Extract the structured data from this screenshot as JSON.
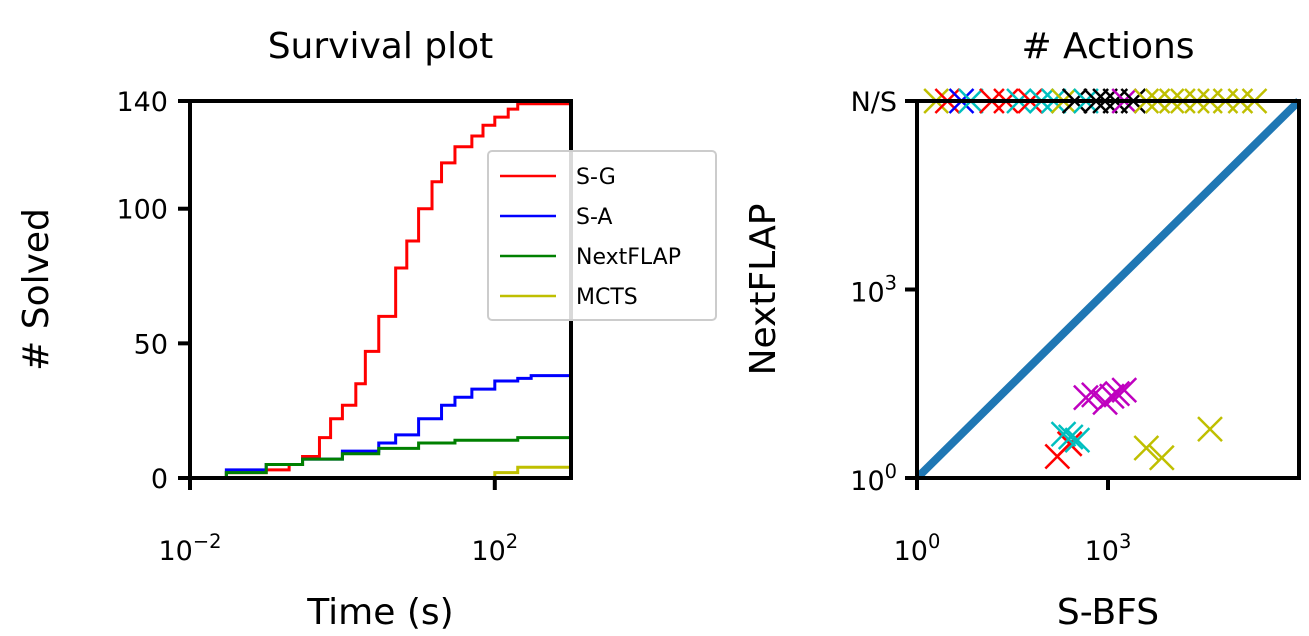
{
  "colors": {
    "S-G": "#ff0000",
    "S-A": "#0000ff",
    "NextFLAP": "#008000",
    "MCTS": "#bfbf00",
    "diagonal": "#1f77b4",
    "cyan": "#00bfbf",
    "magenta": "#bf00bf",
    "black": "#000000"
  },
  "chart_data": [
    {
      "type": "line",
      "title": "Survival plot",
      "xlabel": "Time (s)",
      "ylabel": "# Solved",
      "xscale": "log",
      "xlim": [
        0.01,
        1000
      ],
      "ylim": [
        0,
        140
      ],
      "x_ticks": [
        {
          "value": 0.01,
          "base": "10",
          "exp": "−2"
        },
        {
          "value": 100,
          "base": "10",
          "exp": "2"
        }
      ],
      "y_ticks": [
        {
          "value": 0,
          "label": "0"
        },
        {
          "value": 50,
          "label": "50"
        },
        {
          "value": 100,
          "label": "100"
        },
        {
          "value": 140,
          "label": "140"
        }
      ],
      "legend_position": "upper-right",
      "series": [
        {
          "name": "S-G",
          "x": [
            0.01,
            0.03,
            0.1,
            0.2,
            0.3,
            0.5,
            0.7,
            1,
            1.5,
            2,
            3,
            5,
            7,
            10,
            15,
            20,
            30,
            50,
            70,
            100,
            150,
            200,
            300,
            1000
          ],
          "y": [
            0,
            2,
            3,
            5,
            8,
            15,
            22,
            27,
            35,
            47,
            60,
            78,
            88,
            100,
            110,
            117,
            123,
            127,
            131,
            134,
            137,
            139,
            139,
            139
          ]
        },
        {
          "name": "S-A",
          "x": [
            0.01,
            0.03,
            0.1,
            0.3,
            1,
            3,
            5,
            10,
            20,
            30,
            50,
            100,
            200,
            300,
            1000
          ],
          "y": [
            0,
            3,
            5,
            7,
            10,
            13,
            16,
            22,
            27,
            30,
            33,
            36,
            37,
            38,
            39
          ]
        },
        {
          "name": "NextFLAP",
          "x": [
            0.01,
            0.03,
            0.1,
            0.3,
            1,
            3,
            10,
            30,
            100,
            200,
            1000
          ],
          "y": [
            0,
            2,
            5,
            7,
            9,
            11,
            13,
            14,
            14,
            15,
            15
          ]
        },
        {
          "name": "MCTS",
          "x": [
            20,
            60,
            100,
            150,
            200,
            300,
            1000
          ],
          "y": [
            0,
            0,
            2,
            2,
            4,
            4,
            4
          ]
        }
      ]
    },
    {
      "type": "scatter",
      "title": "# Actions",
      "xlabel": "S-BFS",
      "ylabel": "NextFLAP",
      "xscale": "log",
      "yscale": "log",
      "xlim": [
        1,
        1000000
      ],
      "ylim": [
        1,
        1000000
      ],
      "ns_label": "N/S",
      "x_ticks": [
        {
          "value": 1,
          "base": "10",
          "exp": "0"
        },
        {
          "value": 1000,
          "base": "10",
          "exp": "3"
        }
      ],
      "y_ticks": [
        {
          "value": 1,
          "base": "10",
          "exp": "0"
        },
        {
          "value": 1000,
          "base": "10",
          "exp": "3"
        }
      ],
      "diagonal": true,
      "points": [
        {
          "x": 160,
          "y": 2.2,
          "c": "red"
        },
        {
          "x": 250,
          "y": 3.5,
          "c": "red"
        },
        {
          "x": 200,
          "y": 5,
          "c": "cyan"
        },
        {
          "x": 260,
          "y": 4.5,
          "c": "cyan"
        },
        {
          "x": 330,
          "y": 4,
          "c": "cyan"
        },
        {
          "x": 450,
          "y": 19,
          "c": "magenta"
        },
        {
          "x": 600,
          "y": 21,
          "c": "magenta"
        },
        {
          "x": 900,
          "y": 16,
          "c": "magenta"
        },
        {
          "x": 1150,
          "y": 20,
          "c": "magenta"
        },
        {
          "x": 1400,
          "y": 22,
          "c": "magenta"
        },
        {
          "x": 1800,
          "y": 25,
          "c": "magenta"
        },
        {
          "x": 4000,
          "y": 3,
          "c": "olive"
        },
        {
          "x": 7000,
          "y": 2.1,
          "c": "olive"
        },
        {
          "x": 40000,
          "y": 6,
          "c": "olive"
        }
      ],
      "ns_points": [
        {
          "x": 2,
          "c": "olive"
        },
        {
          "x": 3,
          "c": "red"
        },
        {
          "x": 5,
          "c": "blue"
        },
        {
          "x": 7,
          "c": "cyan"
        },
        {
          "x": 15,
          "c": "red"
        },
        {
          "x": 25,
          "c": "red"
        },
        {
          "x": 40,
          "c": "cyan"
        },
        {
          "x": 60,
          "c": "red"
        },
        {
          "x": 90,
          "c": "cyan"
        },
        {
          "x": 140,
          "c": "cyan"
        },
        {
          "x": 200,
          "c": "olive"
        },
        {
          "x": 300,
          "c": "black"
        },
        {
          "x": 450,
          "c": "cyan"
        },
        {
          "x": 650,
          "c": "black"
        },
        {
          "x": 900,
          "c": "black"
        },
        {
          "x": 1300,
          "c": "black"
        },
        {
          "x": 1800,
          "c": "magenta"
        },
        {
          "x": 2500,
          "c": "black"
        },
        {
          "x": 4000,
          "c": "olive"
        },
        {
          "x": 6000,
          "c": "olive"
        },
        {
          "x": 10000,
          "c": "olive"
        },
        {
          "x": 15000,
          "c": "olive"
        },
        {
          "x": 25000,
          "c": "olive"
        },
        {
          "x": 40000,
          "c": "olive"
        },
        {
          "x": 70000,
          "c": "olive"
        },
        {
          "x": 120000,
          "c": "olive"
        },
        {
          "x": 200000,
          "c": "olive"
        }
      ]
    }
  ]
}
